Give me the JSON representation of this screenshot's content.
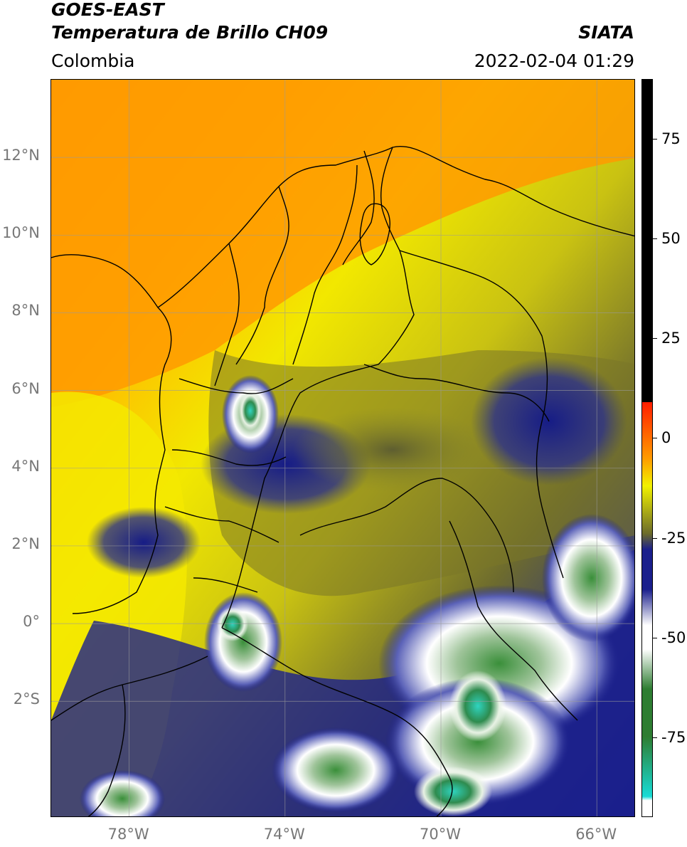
{
  "header": {
    "title_line1": "GOES-EAST",
    "title_line2": "Temperatura de Brillo CH09",
    "brand": "SIATA",
    "region": "Colombia",
    "timestamp": "2022-02-04 01:29"
  },
  "map": {
    "lat_labels": [
      "12°N",
      "10°N",
      "8°N",
      "6°N",
      "4°N",
      "2°N",
      "0°",
      "2°S"
    ],
    "lon_labels": [
      "78°W",
      "74°W",
      "70°W",
      "66°W"
    ],
    "lon_range": [
      -80,
      -65
    ],
    "lat_range": [
      -5,
      14
    ],
    "grid": true
  },
  "colorbar": {
    "tick_labels": [
      "75",
      "50",
      "25",
      "0",
      "-25",
      "-50",
      "-75"
    ],
    "tick_values": [
      75,
      50,
      25,
      0,
      -25,
      -50,
      -75
    ],
    "range": [
      -95,
      90
    ],
    "colors": {
      "hot": "#000000",
      "red": "#ff1e00",
      "orange": "#ff9a00",
      "yellow": "#f2f200",
      "olive": "#6b6b2a",
      "navy": "#1a1f8c",
      "white": "#ffffff",
      "green": "#2e7d32",
      "cyan": "#17dcd6"
    }
  }
}
